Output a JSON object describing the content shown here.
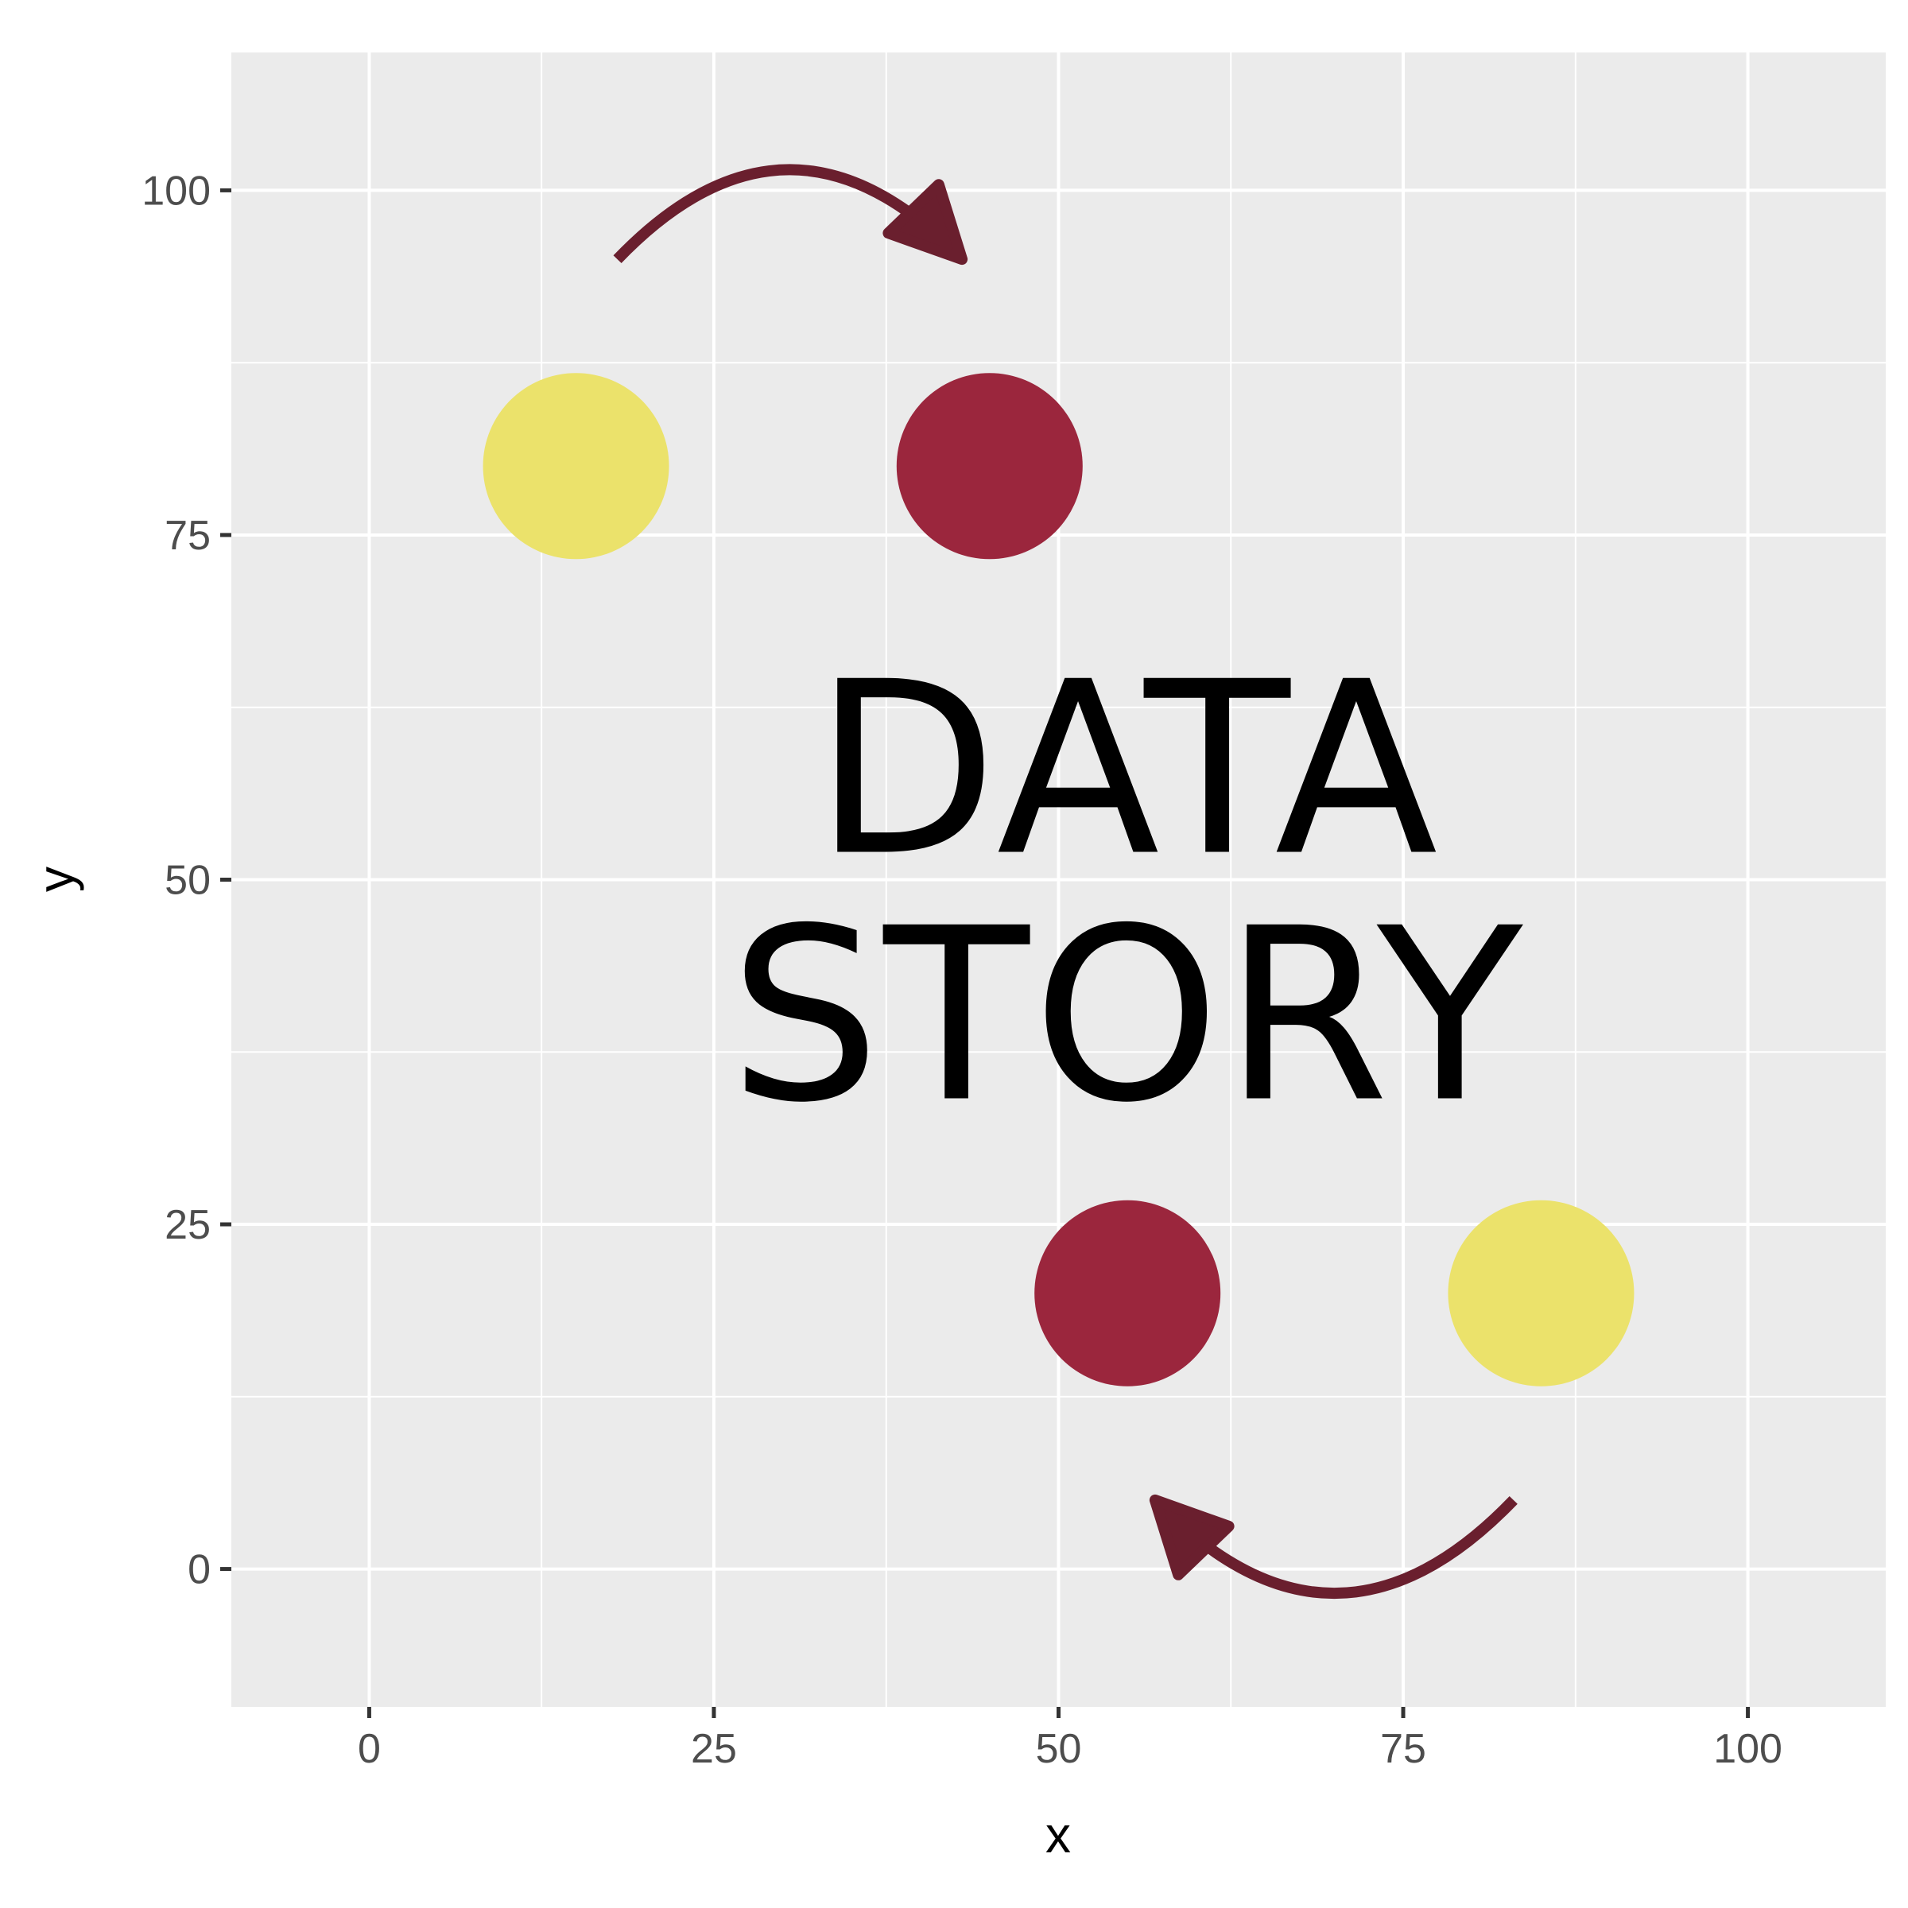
{
  "chart_data": {
    "type": "scatter",
    "xlabel": "x",
    "ylabel": "y",
    "xlim": [
      -10,
      110
    ],
    "ylim": [
      -10,
      110
    ],
    "x_ticks": [
      0,
      25,
      50,
      75,
      100
    ],
    "y_ticks": [
      0,
      25,
      50,
      75,
      100
    ],
    "x_tick_labels": [
      "0",
      "25",
      "50",
      "75",
      "100"
    ],
    "y_tick_labels": [
      "0",
      "25",
      "50",
      "75",
      "100"
    ],
    "grid": true,
    "points": [
      {
        "x": 15,
        "y": 80,
        "color": "#ebe26b"
      },
      {
        "x": 45,
        "y": 80,
        "color": "#9b263d"
      },
      {
        "x": 55,
        "y": 20,
        "color": "#9b263d"
      },
      {
        "x": 85,
        "y": 20,
        "color": "#ebe26b"
      }
    ],
    "arrows": [
      {
        "from": [
          18,
          95
        ],
        "to": [
          43,
          95
        ],
        "curvature": "up",
        "color": "#6a1f2e"
      },
      {
        "from": [
          83,
          5
        ],
        "to": [
          57,
          5
        ],
        "curvature": "down",
        "color": "#6a1f2e"
      }
    ],
    "annotation": {
      "lines": [
        "DATA",
        "STORY"
      ],
      "x": 55,
      "y": 50
    }
  },
  "colors": {
    "panel_background": "#ebebeb",
    "grid": "#ffffff",
    "axis_tick": "#333333"
  }
}
